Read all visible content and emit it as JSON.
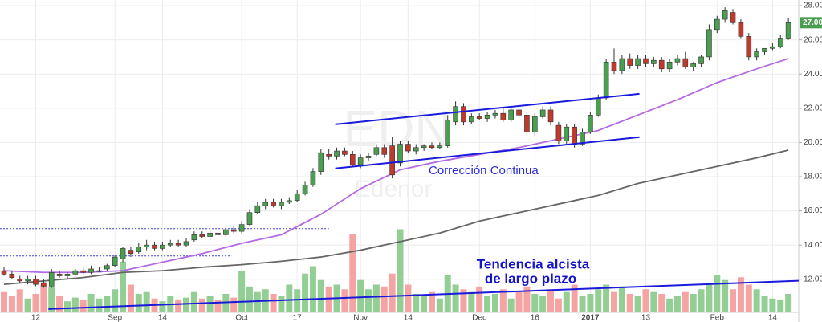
{
  "chart_data": {
    "type": "candlestick",
    "watermark": [
      "EDN",
      "Edenor"
    ],
    "categories": [
      null,
      null,
      null,
      null,
      "12",
      null,
      null,
      null,
      null,
      null,
      null,
      null,
      null,
      null,
      "Sep",
      null,
      null,
      null,
      null,
      null,
      "14",
      null,
      null,
      null,
      null,
      null,
      null,
      null,
      null,
      null,
      "Oct",
      null,
      null,
      null,
      null,
      null,
      null,
      "17",
      null,
      null,
      null,
      null,
      null,
      null,
      null,
      "Nov",
      null,
      null,
      null,
      null,
      null,
      "14",
      null,
      null,
      null,
      null,
      null,
      null,
      null,
      null,
      "Dec",
      null,
      null,
      null,
      null,
      null,
      null,
      "16",
      null,
      null,
      null,
      null,
      null,
      null,
      "2017",
      null,
      null,
      null,
      null,
      null,
      null,
      "13",
      null,
      null,
      null,
      null,
      null,
      null,
      null,
      null,
      "Feb",
      null,
      null,
      null,
      null,
      null,
      null,
      "14",
      null,
      null
    ],
    "open": [
      12.5,
      12.3,
      12.0,
      11.9,
      12.0,
      11.8,
      11.6,
      12.3,
      12.2,
      12.3,
      12.5,
      12.4,
      12.5,
      12.6,
      12.8,
      13.2,
      13.7,
      13.6,
      13.9,
      14.0,
      13.8,
      14.0,
      14.1,
      14.0,
      14.3,
      14.6,
      14.5,
      14.7,
      14.6,
      14.9,
      14.8,
      15.2,
      15.9,
      16.3,
      16.5,
      16.3,
      16.5,
      16.6,
      17.0,
      17.5,
      18.3,
      19.3,
      19.2,
      19.5,
      19.3,
      18.7,
      19.1,
      19.3,
      19.7,
      19.8,
      18.8,
      19.9,
      19.5,
      19.7,
      19.8,
      19.7,
      19.8,
      21.2,
      22.1,
      21.2,
      21.5,
      21.4,
      21.6,
      21.7,
      21.3,
      21.9,
      21.6,
      20.6,
      21.5,
      21.9,
      21.0,
      20.1,
      20.9,
      19.9,
      20.6,
      21.6,
      22.6,
      24.7,
      24.2,
      24.9,
      24.5,
      24.9,
      24.6,
      24.8,
      24.3,
      24.7,
      24.9,
      24.4,
      24.6,
      25.0,
      26.6,
      27.2,
      27.6,
      27.0,
      26.2,
      25.0,
      25.3,
      25.5,
      25.6,
      26.1
    ],
    "high": [
      12.7,
      12.5,
      12.2,
      12.2,
      12.2,
      12.0,
      12.6,
      12.5,
      12.4,
      12.6,
      12.7,
      12.8,
      12.7,
      12.9,
      13.4,
      13.9,
      13.9,
      14.1,
      14.3,
      14.2,
      14.2,
      14.3,
      14.3,
      14.4,
      14.8,
      14.8,
      14.9,
      14.9,
      15.0,
      15.1,
      15.4,
      16.1,
      16.5,
      16.7,
      16.7,
      16.7,
      16.8,
      17.2,
      17.7,
      18.5,
      19.6,
      19.6,
      19.7,
      19.7,
      19.5,
      19.3,
      19.4,
      19.9,
      19.9,
      20.3,
      20.1,
      20.1,
      19.9,
      19.9,
      20.0,
      20.0,
      21.6,
      22.4,
      22.3,
      21.7,
      21.7,
      21.8,
      21.9,
      22.0,
      22.0,
      22.1,
      21.8,
      21.7,
      22.1,
      22.1,
      21.2,
      21.1,
      21.1,
      20.8,
      21.8,
      22.8,
      24.9,
      25.5,
      25.1,
      25.2,
      25.1,
      25.1,
      25.0,
      25.0,
      24.9,
      25.1,
      25.3,
      24.7,
      25.1,
      26.9,
      27.4,
      27.9,
      27.8,
      27.2,
      26.4,
      25.5,
      25.5,
      25.8,
      26.3,
      27.3
    ],
    "low": [
      12.2,
      12.0,
      11.8,
      11.7,
      11.6,
      11.5,
      11.5,
      12.1,
      12.0,
      12.2,
      12.3,
      12.3,
      12.4,
      12.5,
      12.7,
      13.0,
      13.3,
      13.5,
      13.7,
      13.7,
      13.7,
      13.9,
      13.9,
      13.9,
      14.2,
      14.4,
      14.3,
      14.5,
      14.5,
      14.7,
      14.7,
      15.1,
      15.8,
      16.1,
      16.2,
      16.1,
      16.4,
      16.5,
      16.9,
      17.4,
      18.1,
      19.0,
      19.0,
      19.2,
      18.6,
      18.5,
      18.9,
      19.2,
      19.1,
      17.9,
      18.6,
      19.4,
      19.3,
      19.5,
      19.6,
      19.6,
      19.7,
      21.0,
      21.0,
      21.1,
      21.3,
      21.2,
      21.4,
      21.2,
      21.2,
      21.4,
      20.4,
      20.4,
      21.4,
      21.0,
      19.9,
      19.9,
      19.7,
      19.8,
      20.5,
      21.5,
      22.5,
      24.0,
      24.0,
      24.3,
      24.3,
      24.4,
      24.4,
      24.1,
      24.1,
      24.5,
      24.3,
      24.2,
      24.4,
      24.8,
      26.4,
      27.0,
      26.9,
      26.1,
      24.8,
      24.8,
      25.1,
      25.4,
      25.5,
      26.0
    ],
    "close": [
      12.3,
      12.1,
      11.9,
      12.0,
      11.7,
      11.6,
      12.4,
      12.2,
      12.3,
      12.5,
      12.4,
      12.6,
      12.5,
      12.8,
      13.3,
      13.8,
      13.5,
      13.9,
      14.0,
      13.8,
      14.0,
      14.1,
      14.0,
      14.2,
      14.6,
      14.5,
      14.7,
      14.6,
      14.9,
      14.8,
      15.2,
      15.9,
      16.3,
      16.5,
      16.3,
      16.5,
      16.6,
      17.0,
      17.5,
      18.3,
      19.4,
      19.2,
      19.5,
      19.3,
      18.7,
      19.1,
      19.2,
      19.7,
      19.3,
      18.1,
      19.9,
      19.5,
      19.7,
      19.8,
      19.7,
      19.8,
      21.3,
      22.1,
      21.2,
      21.5,
      21.4,
      21.6,
      21.7,
      21.3,
      21.9,
      21.6,
      20.6,
      21.5,
      21.9,
      21.2,
      20.1,
      20.9,
      19.9,
      20.6,
      21.6,
      22.6,
      24.7,
      24.2,
      24.9,
      24.5,
      24.9,
      24.6,
      24.8,
      24.3,
      24.7,
      24.9,
      24.4,
      24.6,
      25.0,
      26.6,
      27.2,
      27.7,
      27.0,
      26.2,
      25.0,
      25.3,
      25.5,
      25.6,
      26.1,
      27.0
    ],
    "volume": [
      22,
      18,
      25,
      15,
      20,
      30,
      28,
      18,
      12,
      16,
      14,
      20,
      15,
      18,
      25,
      55,
      30,
      20,
      22,
      15,
      12,
      18,
      14,
      16,
      22,
      15,
      18,
      14,
      20,
      16,
      45,
      28,
      22,
      25,
      20,
      18,
      30,
      25,
      42,
      50,
      35,
      28,
      30,
      25,
      85,
      35,
      25,
      30,
      28,
      42,
      90,
      30,
      20,
      18,
      22,
      15,
      40,
      30,
      25,
      22,
      28,
      18,
      20,
      25,
      15,
      22,
      28,
      20,
      18,
      25,
      15,
      22,
      30,
      18,
      20,
      25,
      30,
      22,
      28,
      20,
      18,
      25,
      22,
      20,
      15,
      18,
      22,
      20,
      25,
      30,
      40,
      35,
      25,
      38,
      30,
      25,
      18,
      15,
      14,
      20
    ],
    "up_color": "#4a9e4f",
    "down_color": "#c0392b",
    "up_volume_color": "#93cf95",
    "down_volume_color": "#f5a3a3",
    "vlim": [
      0,
      100
    ],
    "ylim": [
      9.5,
      28.33
    ],
    "yticks": [
      {
        "value": 12,
        "label": "12.00"
      },
      {
        "value": 14,
        "label": "14.00"
      },
      {
        "value": 16,
        "label": "16.00"
      },
      {
        "value": 18,
        "label": "18.00"
      },
      {
        "value": 20,
        "label": "20.00"
      },
      {
        "value": 22,
        "label": "22.00"
      },
      {
        "value": 24,
        "label": "24.00"
      },
      {
        "value": 26,
        "label": "26.00"
      },
      {
        "value": 28,
        "label": "28.00"
      }
    ],
    "grid": true,
    "last_price": {
      "value": 27.0,
      "label": "27.00",
      "color": "#4a9e4f"
    },
    "moving_averages": [
      {
        "color": "#b36ae2",
        "x": [
          0,
          5,
          10,
          15,
          20,
          25,
          30,
          35,
          40,
          45,
          50,
          55,
          60,
          65,
          70,
          75,
          80,
          85,
          90,
          95,
          99
        ],
        "values": [
          12.5,
          12.4,
          12.4,
          12.5,
          13.0,
          13.5,
          14.1,
          14.6,
          15.8,
          17.3,
          18.4,
          18.9,
          19.3,
          19.7,
          20.2,
          20.7,
          21.6,
          22.5,
          23.5,
          24.3,
          24.9
        ]
      },
      {
        "color": "#666666",
        "x": [
          0,
          5,
          10,
          15,
          20,
          25,
          30,
          35,
          40,
          45,
          50,
          55,
          60,
          65,
          70,
          75,
          80,
          85,
          90,
          95,
          99
        ],
        "values": [
          11.7,
          11.9,
          12.1,
          12.4,
          12.5,
          12.7,
          12.85,
          13.05,
          13.3,
          13.7,
          14.2,
          14.7,
          15.4,
          15.9,
          16.4,
          16.9,
          17.6,
          18.1,
          18.6,
          19.1,
          19.55
        ]
      }
    ],
    "trend_lines": [
      {
        "color": "#1a1adb",
        "x": [
          41.8,
          80.2
        ],
        "values": [
          21.06,
          22.84
        ]
      },
      {
        "color": "#1a1adb",
        "x": [
          41.8,
          80.2
        ],
        "values": [
          18.48,
          20.31
        ]
      },
      {
        "color": "#1a1adb",
        "x": [
          5.6,
          100.3
        ],
        "values": [
          10.26,
          11.91
        ]
      }
    ],
    "levels": [
      {
        "color": "#3b3bd6",
        "x": [
          -0.5,
          41
        ],
        "value": 14.96
      },
      {
        "color": "#3b3bd6",
        "x": [
          -0.5,
          28.7
        ],
        "value": 13.36
      }
    ],
    "annotations": [
      "Corrección Continua",
      "Tendencia alcista",
      "de largo plazo"
    ]
  }
}
